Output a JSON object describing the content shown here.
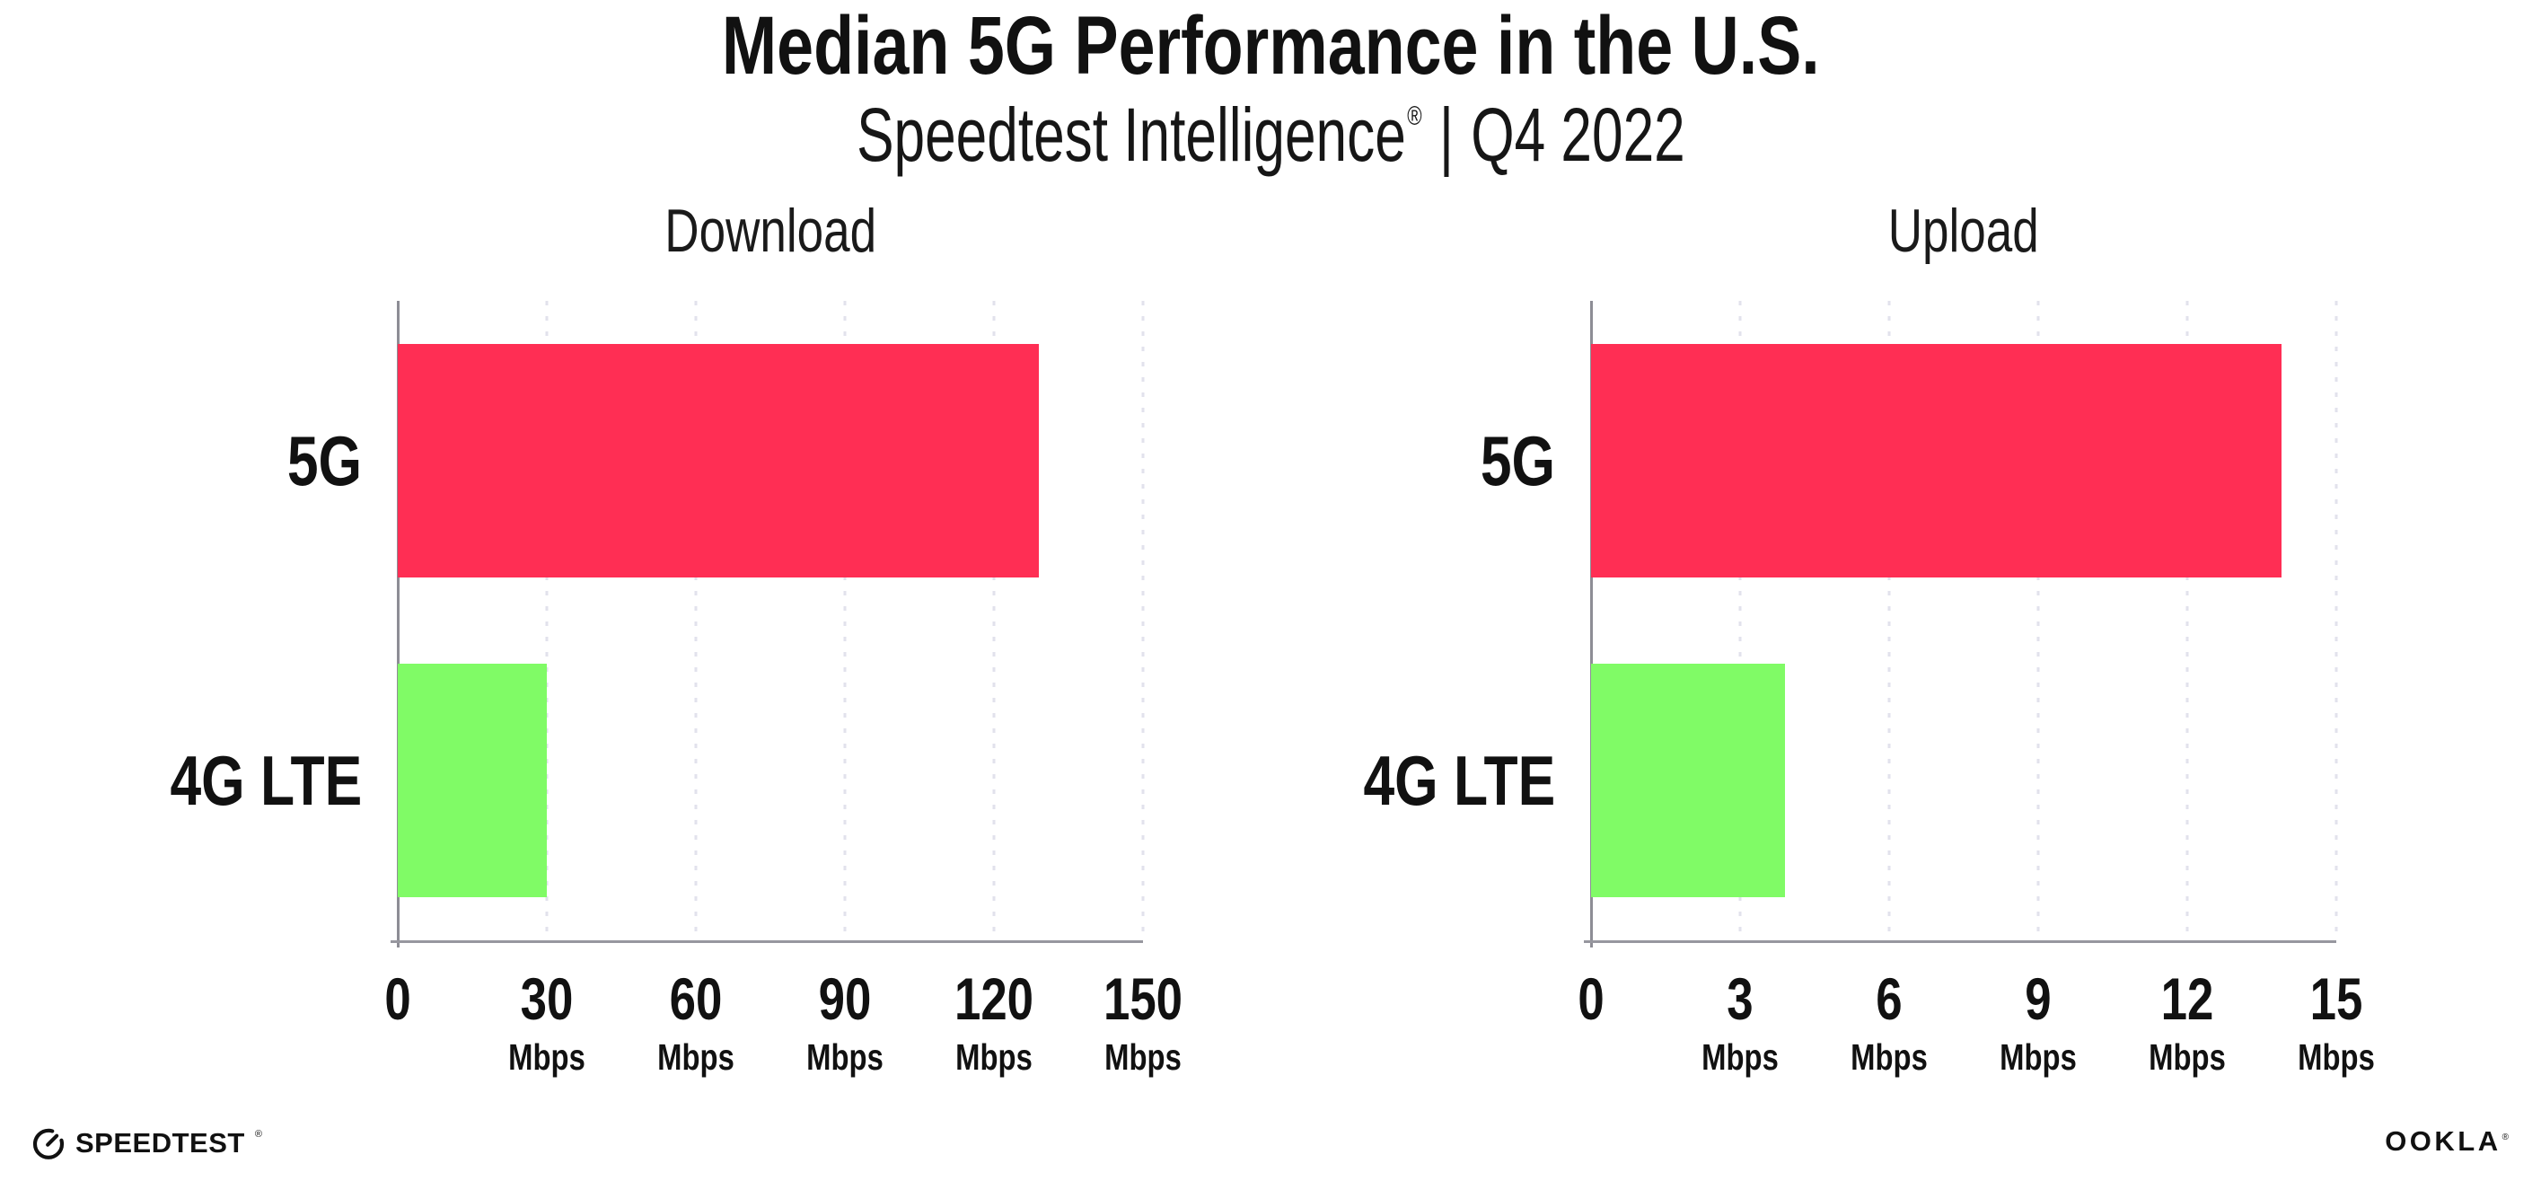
{
  "header": {
    "title": "Median 5G Performance in the U.S.",
    "subtitle": {
      "brand": "Speedtest Intelligence",
      "registered_mark": "®",
      "separator": "|",
      "period": "Q4 2022"
    }
  },
  "colors": {
    "bar_5g": "#ff2e54",
    "bar_4g_lte": "#80fb66",
    "x_axis_line": "#97979f",
    "y_axis_line": "#8d8d95",
    "gridline": "#e2e2ec",
    "text": "#111111",
    "background": "#ffffff"
  },
  "chart_data": [
    {
      "type": "bar",
      "orientation": "horizontal",
      "title": "Download",
      "categories": [
        "5G",
        "4G LTE"
      ],
      "values": [
        129,
        30
      ],
      "unit": "Mbps",
      "xlim": [
        0,
        150
      ],
      "xticks": [
        0,
        30,
        60,
        90,
        120,
        150
      ],
      "tick_unit_label": "Mbps",
      "bar_colors": [
        "#ff2e54",
        "#80fb66"
      ],
      "grid": "vertical-dotted",
      "legend": "none"
    },
    {
      "type": "bar",
      "orientation": "horizontal",
      "title": "Upload",
      "categories": [
        "5G",
        "4G LTE"
      ],
      "values": [
        13.9,
        3.9
      ],
      "unit": "Mbps",
      "xlim": [
        0,
        15
      ],
      "xticks": [
        0,
        3,
        6,
        9,
        12,
        15
      ],
      "tick_unit_label": "Mbps",
      "bar_colors": [
        "#ff2e54",
        "#80fb66"
      ],
      "grid": "vertical-dotted",
      "legend": "none"
    }
  ],
  "footer": {
    "speedtest": {
      "label": "SPEEDTEST",
      "mark": "®",
      "icon": "speedtest-gauge-icon"
    },
    "ookla": {
      "label": "OOKLA",
      "mark": "®"
    }
  }
}
